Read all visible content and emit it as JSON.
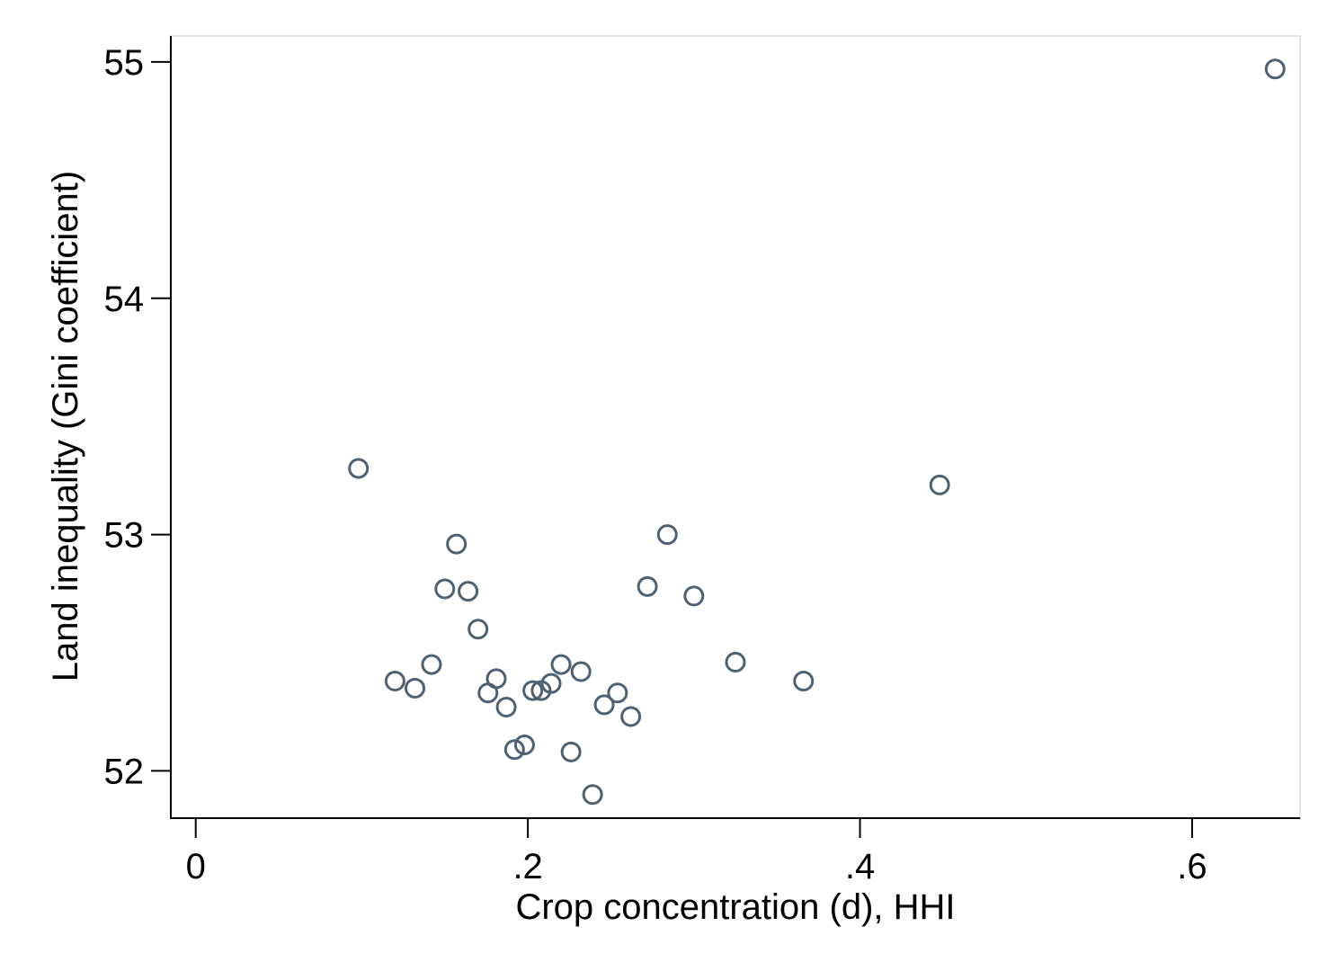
{
  "chart_data": {
    "type": "scatter",
    "title": "",
    "xlabel": "Crop concentration (d), HHI",
    "ylabel": "Land inequality (Gini coefficient)",
    "xlim": [
      -0.015,
      0.665
    ],
    "ylim": [
      51.8,
      55.11
    ],
    "x_ticks": [
      {
        "value": 0,
        "label": "0"
      },
      {
        "value": 0.2,
        "label": ".2"
      },
      {
        "value": 0.4,
        "label": ".4"
      },
      {
        "value": 0.6,
        "label": ".6"
      }
    ],
    "y_ticks": [
      {
        "value": 52,
        "label": "52"
      },
      {
        "value": 53,
        "label": "53"
      },
      {
        "value": 54,
        "label": "54"
      },
      {
        "value": 55,
        "label": "55"
      }
    ],
    "grid": false,
    "legend": "none",
    "marker_color": "#4e6172",
    "points": [
      {
        "x": 0.098,
        "y": 53.28
      },
      {
        "x": 0.12,
        "y": 52.38
      },
      {
        "x": 0.132,
        "y": 52.35
      },
      {
        "x": 0.142,
        "y": 52.45
      },
      {
        "x": 0.15,
        "y": 52.77
      },
      {
        "x": 0.157,
        "y": 52.96
      },
      {
        "x": 0.164,
        "y": 52.76
      },
      {
        "x": 0.17,
        "y": 52.6
      },
      {
        "x": 0.176,
        "y": 52.33
      },
      {
        "x": 0.181,
        "y": 52.39
      },
      {
        "x": 0.187,
        "y": 52.27
      },
      {
        "x": 0.192,
        "y": 52.09
      },
      {
        "x": 0.198,
        "y": 52.11
      },
      {
        "x": 0.203,
        "y": 52.34
      },
      {
        "x": 0.208,
        "y": 52.34
      },
      {
        "x": 0.214,
        "y": 52.37
      },
      {
        "x": 0.22,
        "y": 52.45
      },
      {
        "x": 0.226,
        "y": 52.08
      },
      {
        "x": 0.232,
        "y": 52.42
      },
      {
        "x": 0.239,
        "y": 51.9
      },
      {
        "x": 0.246,
        "y": 52.28
      },
      {
        "x": 0.254,
        "y": 52.33
      },
      {
        "x": 0.262,
        "y": 52.23
      },
      {
        "x": 0.272,
        "y": 52.78
      },
      {
        "x": 0.284,
        "y": 53.0
      },
      {
        "x": 0.3,
        "y": 52.74
      },
      {
        "x": 0.325,
        "y": 52.46
      },
      {
        "x": 0.366,
        "y": 52.38
      },
      {
        "x": 0.448,
        "y": 53.21
      },
      {
        "x": 0.65,
        "y": 54.97
      }
    ]
  }
}
